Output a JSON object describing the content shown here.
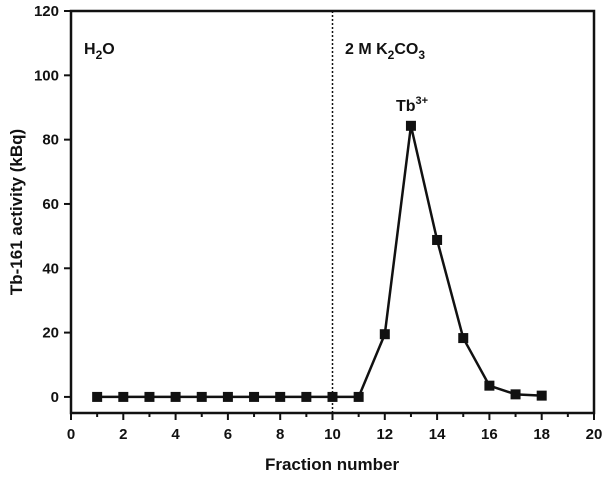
{
  "chart_data": {
    "type": "line",
    "title": "",
    "xlabel": "Fraction number",
    "ylabel": "Tb-161 activity (kBq)",
    "xlim": [
      0,
      20
    ],
    "ylim": [
      -5,
      120
    ],
    "xticks": [
      0,
      2,
      4,
      6,
      8,
      10,
      12,
      14,
      16,
      18,
      20
    ],
    "yticks": [
      0,
      20,
      40,
      60,
      80,
      100,
      120
    ],
    "grid": false,
    "legend": null,
    "marker": "square",
    "series": [
      {
        "name": "Tb-161 activity",
        "x": [
          1,
          2,
          3,
          4,
          5,
          6,
          7,
          8,
          9,
          10,
          11,
          12,
          13,
          14,
          15,
          16,
          17,
          18
        ],
        "values": [
          0,
          0,
          0,
          0,
          0,
          0,
          0,
          0,
          0,
          0,
          0,
          19.5,
          84.3,
          48.8,
          18.3,
          3.5,
          0.8,
          0.4
        ]
      }
    ],
    "annotations": [
      {
        "text": "H2O",
        "region": "left",
        "x": 0.5,
        "y": 113
      },
      {
        "text": "2 M K2CO3",
        "region": "right",
        "x": 10.5,
        "y": 113
      },
      {
        "text": "Tb3+",
        "x": 13,
        "y": 90,
        "note": "peak label"
      }
    ],
    "vline": {
      "x": 10,
      "style": "dotted"
    }
  },
  "labels": {
    "xlabel": "Fraction number",
    "ylabel": "Tb-161 activity (kBq)",
    "h2o_main": "H",
    "h2o_sub": "2",
    "h2o_end": "O",
    "k2co3_main": "2 M K",
    "k2co3_sub1": "2",
    "k2co3_mid": "CO",
    "k2co3_sub2": "3",
    "tb_main": "Tb",
    "tb_sup": "3+"
  }
}
